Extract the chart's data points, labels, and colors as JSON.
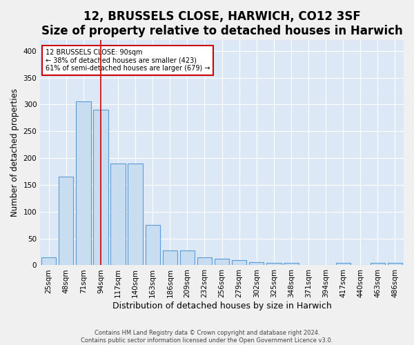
{
  "title": "12, BRUSSELS CLOSE, HARWICH, CO12 3SF",
  "subtitle": "Size of property relative to detached houses in Harwich",
  "xlabel": "Distribution of detached houses by size in Harwich",
  "ylabel": "Number of detached properties",
  "categories": [
    "25sqm",
    "48sqm",
    "71sqm",
    "94sqm",
    "117sqm",
    "140sqm",
    "163sqm",
    "186sqm",
    "209sqm",
    "232sqm",
    "256sqm",
    "279sqm",
    "302sqm",
    "325sqm",
    "348sqm",
    "371sqm",
    "394sqm",
    "417sqm",
    "440sqm",
    "463sqm",
    "486sqm"
  ],
  "values": [
    15,
    165,
    305,
    290,
    190,
    190,
    75,
    28,
    28,
    15,
    12,
    10,
    6,
    5,
    5,
    0,
    0,
    5,
    0,
    4,
    4
  ],
  "bar_color": "#c9ddf0",
  "bar_edge_color": "#5b9bd5",
  "vline_index": 3.0,
  "vline_color": "#cc0000",
  "annotation_line0": "12 BRUSSELS CLOSE: 90sqm",
  "annotation_line1": "← 38% of detached houses are smaller (423)",
  "annotation_line2": "61% of semi-detached houses are larger (679) →",
  "footnote1": "Contains HM Land Registry data © Crown copyright and database right 2024.",
  "footnote2": "Contains public sector information licensed under the Open Government Licence v3.0.",
  "ylim": [
    0,
    420
  ],
  "background_color": "#dce8f5",
  "grid_color": "#ffffff",
  "title_fontsize": 12,
  "subtitle_fontsize": 10,
  "tick_fontsize": 7.5,
  "ylabel_fontsize": 8.5,
  "xlabel_fontsize": 9
}
